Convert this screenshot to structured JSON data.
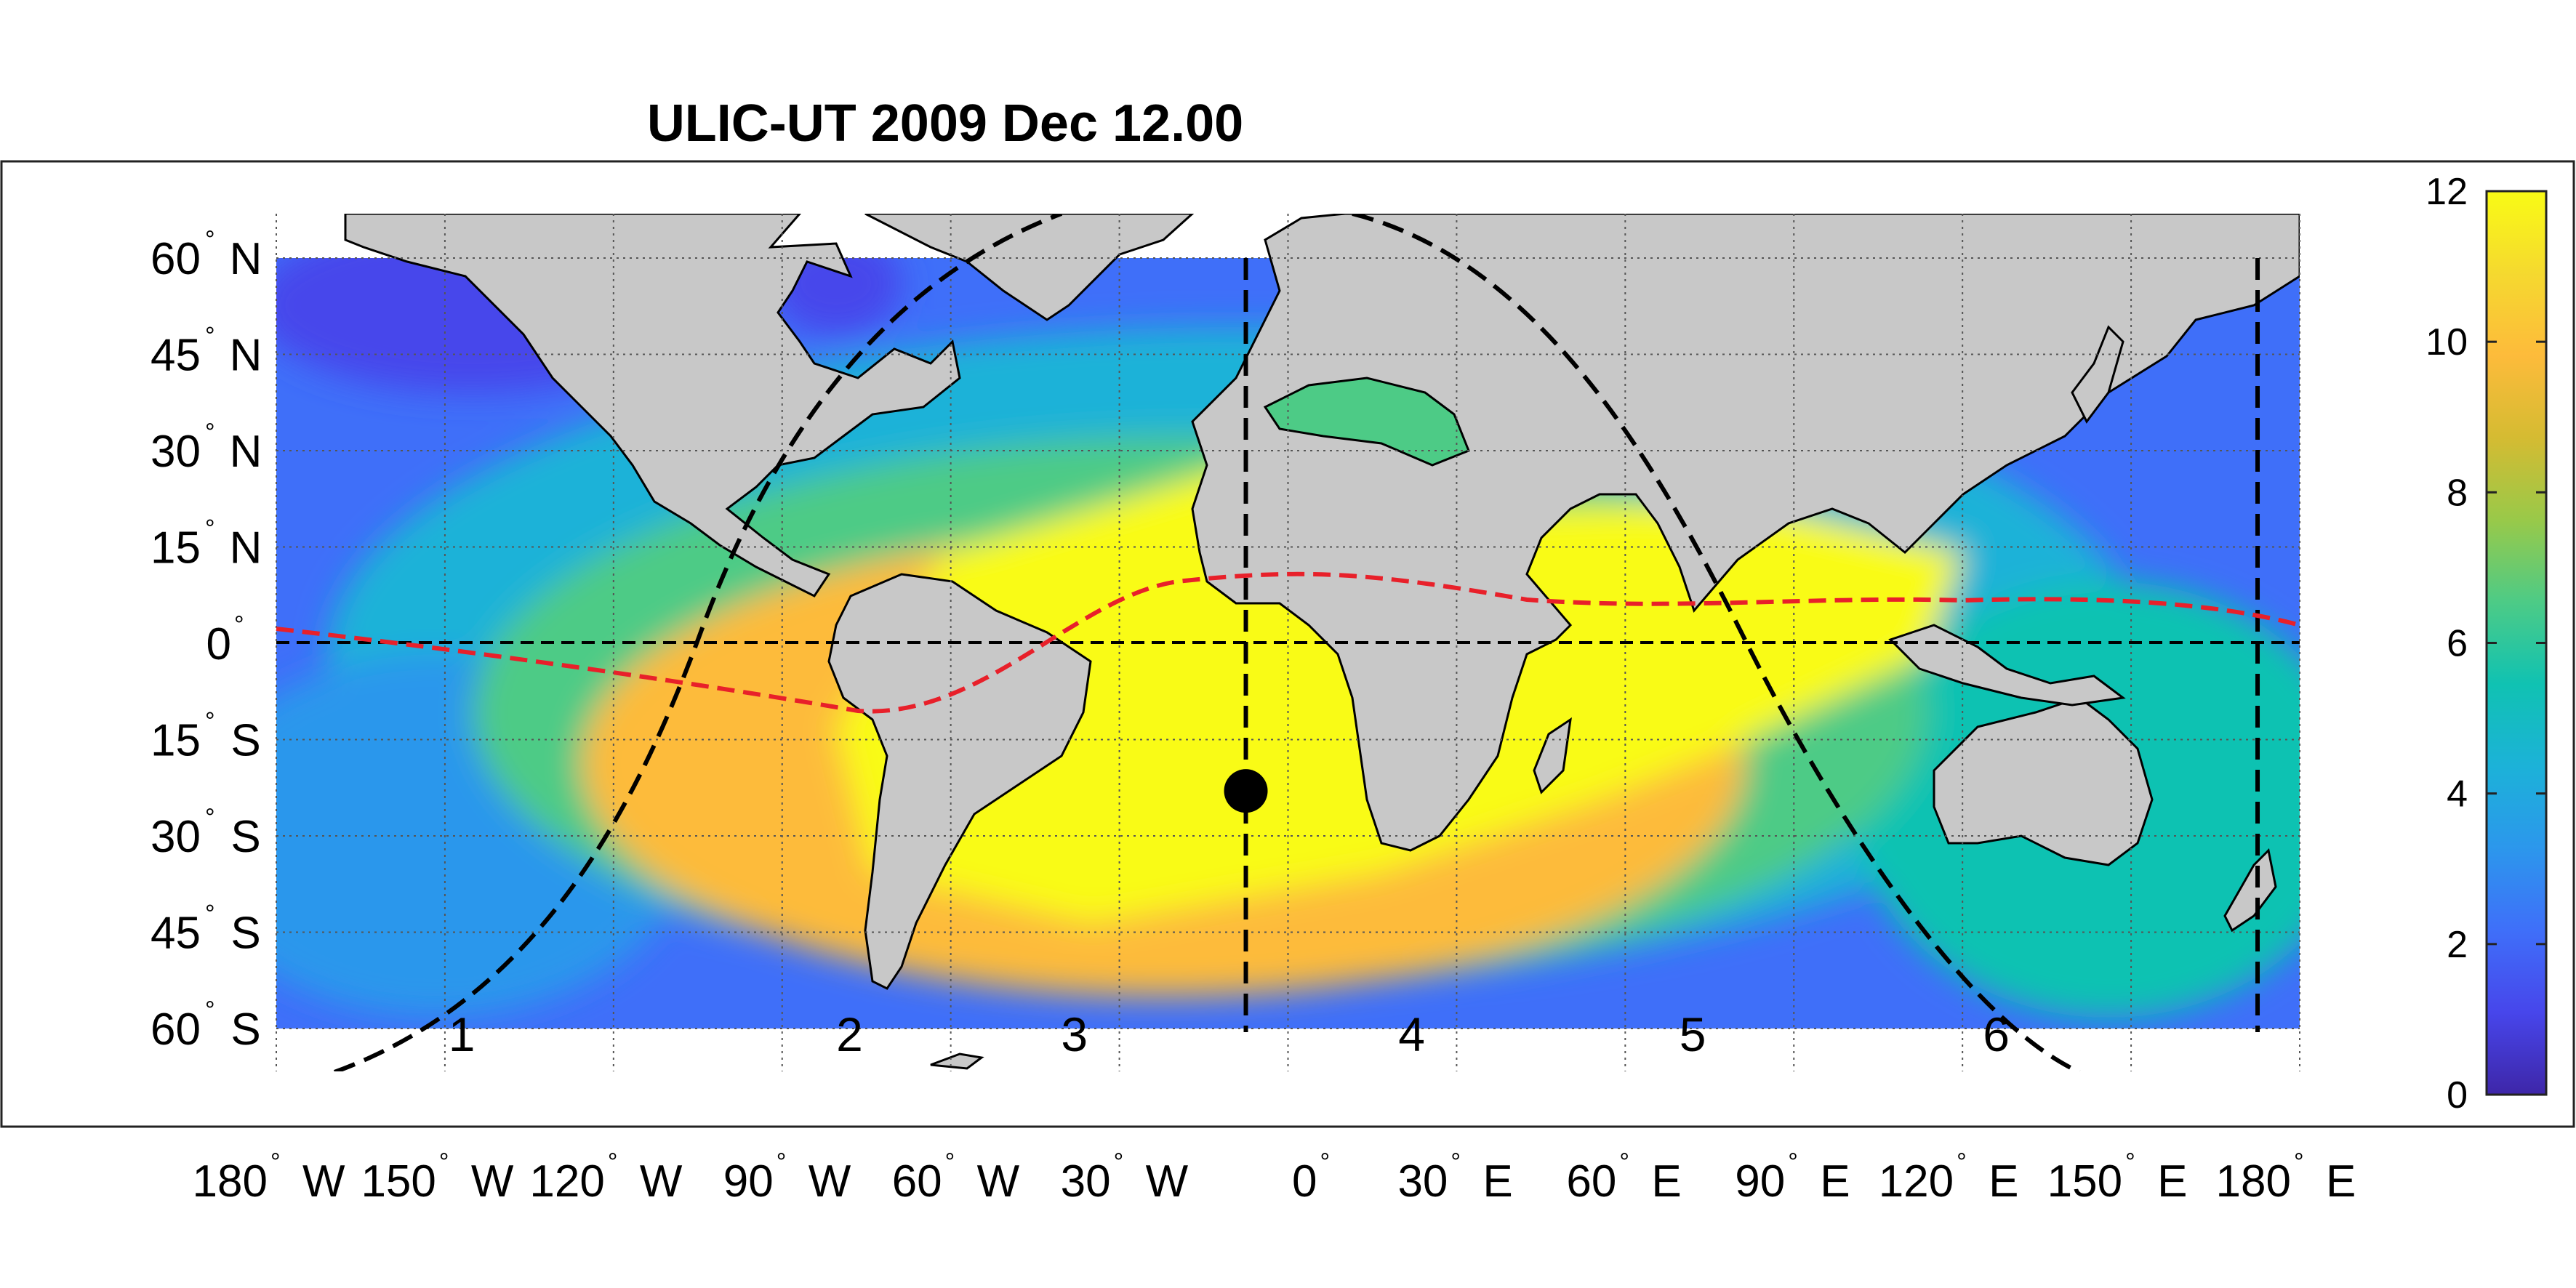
{
  "title": "ULIC-UT 2009 Dec 12.00",
  "latitude_labels": [
    {
      "deg": 60,
      "label": "60",
      "hemi": "N"
    },
    {
      "deg": 45,
      "label": "45",
      "hemi": "N"
    },
    {
      "deg": 30,
      "label": "30",
      "hemi": "N"
    },
    {
      "deg": 15,
      "label": "15",
      "hemi": "N"
    },
    {
      "deg": 0,
      "label": "0",
      "hemi": ""
    },
    {
      "deg": -15,
      "label": "15",
      "hemi": "S"
    },
    {
      "deg": -30,
      "label": "30",
      "hemi": "S"
    },
    {
      "deg": -45,
      "label": "45",
      "hemi": "S"
    },
    {
      "deg": -60,
      "label": "60",
      "hemi": "S"
    }
  ],
  "longitude_labels": [
    {
      "deg": -180,
      "label": "180",
      "hemi": "W"
    },
    {
      "deg": -150,
      "label": "150",
      "hemi": "W"
    },
    {
      "deg": -120,
      "label": "120",
      "hemi": "W"
    },
    {
      "deg": -90,
      "label": "90",
      "hemi": "W"
    },
    {
      "deg": -60,
      "label": "60",
      "hemi": "W"
    },
    {
      "deg": -30,
      "label": "30",
      "hemi": "W"
    },
    {
      "deg": 0,
      "label": "0",
      "hemi": ""
    },
    {
      "deg": 30,
      "label": "30",
      "hemi": "E"
    },
    {
      "deg": 60,
      "label": "60",
      "hemi": "E"
    },
    {
      "deg": 90,
      "label": "90",
      "hemi": "E"
    },
    {
      "deg": 120,
      "label": "120",
      "hemi": "E"
    },
    {
      "deg": 150,
      "label": "150",
      "hemi": "E"
    },
    {
      "deg": 180,
      "label": "180",
      "hemi": "E"
    }
  ],
  "degree_symbol": "°",
  "colorbar": {
    "ticks": [
      "0",
      "2",
      "4",
      "6",
      "8",
      "10",
      "12"
    ],
    "min": 0,
    "max": 12,
    "colors": [
      "#3e26a8",
      "#4746eb",
      "#3f6ff9",
      "#2c97ec",
      "#1cb2d8",
      "#10c2b2",
      "#4dcb86",
      "#99c949",
      "#d5bb32",
      "#fdbb3b",
      "#f5d92f",
      "#f9fb15"
    ]
  },
  "zone_labels": [
    {
      "text": "1",
      "lon": -147
    },
    {
      "text": "2",
      "lon": -78
    },
    {
      "text": "3",
      "lon": -38
    },
    {
      "text": "4",
      "lon": 22
    },
    {
      "text": "5",
      "lon": 72
    },
    {
      "text": "6",
      "lon": 126
    }
  ],
  "subsolar_point": {
    "lon": -7.5,
    "lat": -23
  },
  "vertical_dashed_meridians_lon": [
    -7.5,
    172.5
  ],
  "colors": {
    "land": "#c8c8c8",
    "red_curve": "#e8202a",
    "terminator": "#000000",
    "grid": "#555555",
    "frame": "#222222"
  }
}
